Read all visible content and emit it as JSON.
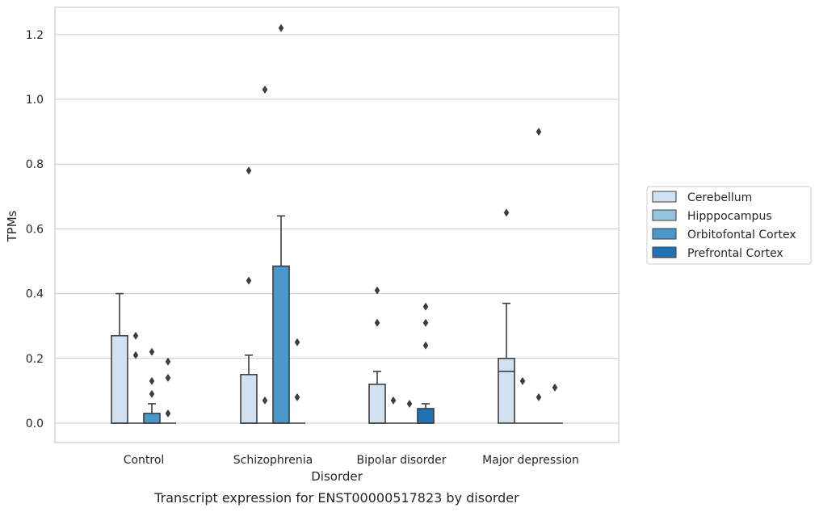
{
  "chart_data": {
    "type": "box",
    "title": "",
    "caption": "Transcript expression for ENST00000517823 by disorder",
    "xlabel": "Disorder",
    "ylabel": "TPMs",
    "ylim": [
      -0.06,
      1.28
    ],
    "yticks": [
      "0.0",
      "0.2",
      "0.4",
      "0.6",
      "0.8",
      "1.0",
      "1.2"
    ],
    "grid": "horizontal",
    "legend_position": "right",
    "categories": [
      "Control",
      "Schizophrenia",
      "Bipolar disorder",
      "Major depression"
    ],
    "series": [
      {
        "name": "Cerebellum",
        "color": "#d0e1f2",
        "boxes": [
          {
            "q1": 0,
            "median": 0,
            "q3": 0.27,
            "whisker_low": 0,
            "whisker_high": 0.4,
            "outliers": []
          },
          {
            "q1": 0,
            "median": 0,
            "q3": 0.15,
            "whisker_low": 0,
            "whisker_high": 0.21,
            "outliers": [
              0.44,
              0.78
            ]
          },
          {
            "q1": 0,
            "median": 0,
            "q3": 0.12,
            "whisker_low": 0,
            "whisker_high": 0.16,
            "outliers": [
              0.31,
              0.41
            ]
          },
          {
            "q1": 0,
            "median": 0.16,
            "q3": 0.2,
            "whisker_low": 0,
            "whisker_high": 0.37,
            "outliers": [
              0.65
            ]
          }
        ]
      },
      {
        "name": "Hipppocampus",
        "color": "#94c4df",
        "boxes": [
          {
            "q1": 0,
            "median": 0,
            "q3": 0,
            "whisker_low": 0,
            "whisker_high": 0,
            "outliers": [
              0.21,
              0.27
            ]
          },
          {
            "q1": 0,
            "median": 0,
            "q3": 0,
            "whisker_low": 0,
            "whisker_high": 0,
            "outliers": [
              0.07,
              1.03
            ]
          },
          {
            "q1": 0,
            "median": 0,
            "q3": 0,
            "whisker_low": 0,
            "whisker_high": 0,
            "outliers": [
              0.07
            ]
          },
          {
            "q1": 0,
            "median": 0,
            "q3": 0,
            "whisker_low": 0,
            "whisker_high": 0,
            "outliers": [
              0.13
            ]
          }
        ]
      },
      {
        "name": "Orbitofontal Cortex",
        "color": "#4a98c9",
        "boxes": [
          {
            "q1": 0,
            "median": 0,
            "q3": 0.03,
            "whisker_low": 0,
            "whisker_high": 0.06,
            "outliers": [
              0.09,
              0.13,
              0.22
            ]
          },
          {
            "q1": 0,
            "median": 0,
            "q3": 0.485,
            "whisker_low": 0,
            "whisker_high": 0.64,
            "outliers": [
              1.22
            ]
          },
          {
            "q1": 0,
            "median": 0,
            "q3": 0,
            "whisker_low": 0,
            "whisker_high": 0,
            "outliers": [
              0.06
            ]
          },
          {
            "q1": 0,
            "median": 0,
            "q3": 0,
            "whisker_low": 0,
            "whisker_high": 0,
            "outliers": [
              0.08,
              0.9
            ]
          }
        ]
      },
      {
        "name": "Prefrontal Cortex",
        "color": "#2171b5",
        "boxes": [
          {
            "q1": 0,
            "median": 0,
            "q3": 0,
            "whisker_low": 0,
            "whisker_high": 0,
            "outliers": [
              0.03,
              0.14,
              0.19
            ]
          },
          {
            "q1": 0,
            "median": 0,
            "q3": 0,
            "whisker_low": 0,
            "whisker_high": 0,
            "outliers": [
              0.08,
              0.25
            ]
          },
          {
            "q1": 0,
            "median": 0,
            "q3": 0.045,
            "whisker_low": 0,
            "whisker_high": 0.06,
            "outliers": [
              0.24,
              0.31,
              0.36
            ]
          },
          {
            "q1": 0,
            "median": 0,
            "q3": 0,
            "whisker_low": 0,
            "whisker_high": 0,
            "outliers": [
              0.11
            ]
          }
        ]
      }
    ]
  }
}
